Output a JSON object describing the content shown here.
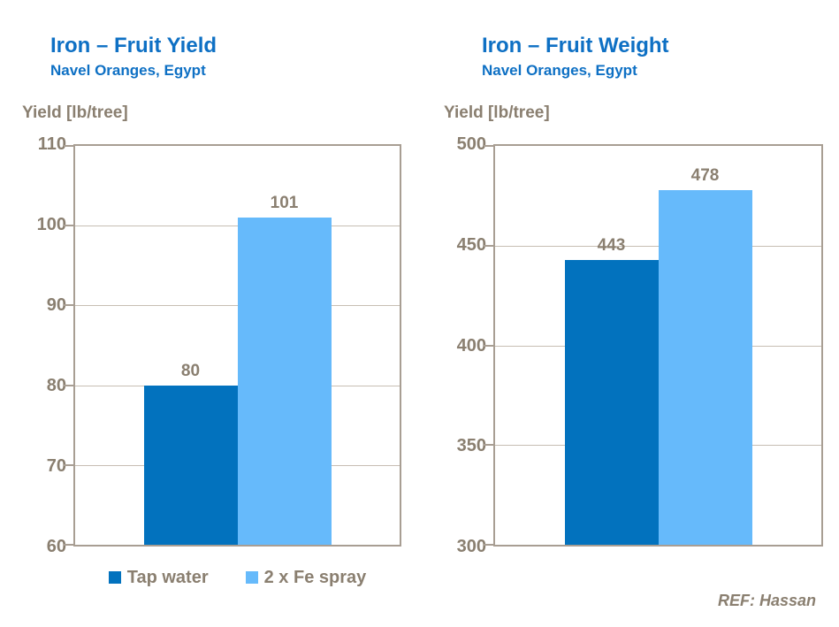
{
  "colors": {
    "title_blue": "#0E70C4",
    "axis_text": "#8A7F70",
    "frame": "#A89E93",
    "gridline": "#C7BEB3",
    "bar_dark_blue": "#0272BE",
    "bar_light_blue": "#66BAFB",
    "background": "#FFFFFF"
  },
  "chart_data": [
    {
      "type": "bar",
      "title": "Iron – Fruit Yield",
      "subtitle": "Navel Oranges, Egypt",
      "ylabel": "Yield [lb/tree]",
      "xlabel": "",
      "categories": [
        "Tap water",
        "2 x Fe spray"
      ],
      "values": [
        80,
        101
      ],
      "bar_colors": [
        "#0272BE",
        "#66BAFB"
      ],
      "ylim": [
        60,
        110
      ],
      "yticks": [
        110,
        100,
        90,
        80,
        70,
        60
      ],
      "grid": true,
      "legend_position": "bottom"
    },
    {
      "type": "bar",
      "title": "Iron – Fruit Weight",
      "subtitle": "Navel Oranges, Egypt",
      "ylabel": "Yield [lb/tree]",
      "xlabel": "",
      "categories": [
        "Tap water",
        "2 x Fe spray"
      ],
      "values": [
        443,
        478
      ],
      "bar_colors": [
        "#0272BE",
        "#66BAFB"
      ],
      "ylim": [
        300,
        500
      ],
      "yticks": [
        500,
        450,
        400,
        350,
        300
      ],
      "grid": true,
      "legend_position": "none"
    }
  ],
  "legend": {
    "items": [
      {
        "label": "Tap water",
        "color": "#0272BE"
      },
      {
        "label": "2 x Fe spray",
        "color": "#66BAFB"
      }
    ]
  },
  "footer": {
    "ref_label": "REF: Hassan"
  }
}
